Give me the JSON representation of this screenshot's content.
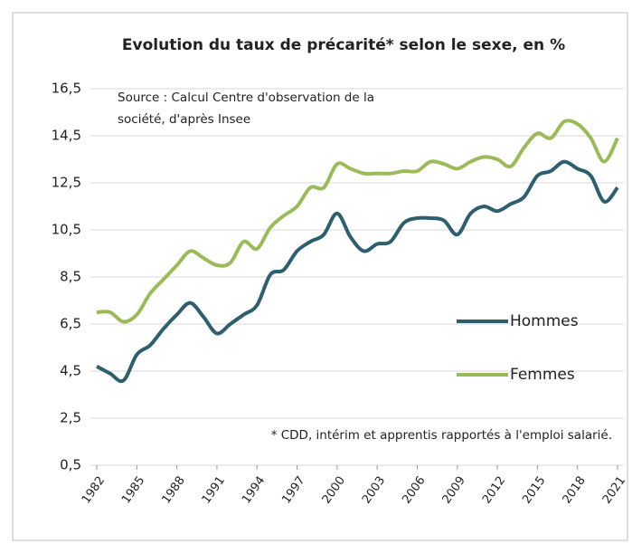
{
  "chart_data": {
    "type": "line",
    "title": "Evolution du taux de précarité* selon le sexe, en %",
    "annotations": [
      "Source : Calcul Centre d'observation de la",
      "société, d'après Insee",
      "* CDD, intérim et apprentis rapportés à l'emploi salarié."
    ],
    "x": [
      1982,
      1983,
      1984,
      1985,
      1986,
      1987,
      1988,
      1989,
      1990,
      1991,
      1992,
      1993,
      1994,
      1995,
      1996,
      1997,
      1998,
      1999,
      2000,
      2001,
      2002,
      2003,
      2004,
      2005,
      2006,
      2007,
      2008,
      2009,
      2010,
      2011,
      2012,
      2013,
      2014,
      2015,
      2016,
      2017,
      2018,
      2019,
      2020,
      2021
    ],
    "series": [
      {
        "name": "Hommes",
        "color": "#2e5f6e",
        "values": [
          4.7,
          4.4,
          4.1,
          5.2,
          5.6,
          6.3,
          6.9,
          7.4,
          6.8,
          6.1,
          6.5,
          6.9,
          7.3,
          8.6,
          8.8,
          9.6,
          10.0,
          10.3,
          11.2,
          10.2,
          9.6,
          9.9,
          10.0,
          10.8,
          11.0,
          11.0,
          10.9,
          10.3,
          11.2,
          11.5,
          11.3,
          11.6,
          11.9,
          12.8,
          13.0,
          13.4,
          13.1,
          12.8,
          11.7,
          12.3
        ]
      },
      {
        "name": "Femmes",
        "color": "#9bbb59",
        "values": [
          7.0,
          7.0,
          6.6,
          6.9,
          7.8,
          8.4,
          9.0,
          9.6,
          9.3,
          9.0,
          9.1,
          10.0,
          9.7,
          10.6,
          11.1,
          11.5,
          12.3,
          12.3,
          13.3,
          13.1,
          12.9,
          12.9,
          12.9,
          13.0,
          13.0,
          13.4,
          13.3,
          13.1,
          13.4,
          13.6,
          13.5,
          13.2,
          14.0,
          14.6,
          14.4,
          15.1,
          15.0,
          14.4,
          13.4,
          14.4
        ]
      }
    ],
    "xlim": [
      1982,
      2021
    ],
    "xticks": [
      1982,
      1985,
      1988,
      1991,
      1994,
      1997,
      2000,
      2003,
      2006,
      2009,
      2012,
      2015,
      2018,
      2021
    ],
    "ylim": [
      0.5,
      16.5
    ],
    "yticks": [
      {
        "value": 0.5,
        "label": "0,5"
      },
      {
        "value": 2.5,
        "label": "2,5"
      },
      {
        "value": 4.5,
        "label": "4,5"
      },
      {
        "value": 6.5,
        "label": "6,5"
      },
      {
        "value": 8.5,
        "label": "8,5"
      },
      {
        "value": 10.5,
        "label": "10,5"
      },
      {
        "value": 12.5,
        "label": "12,5"
      },
      {
        "value": 14.5,
        "label": "14,5"
      },
      {
        "value": 16.5,
        "label": "16,5"
      }
    ],
    "grid": true
  }
}
